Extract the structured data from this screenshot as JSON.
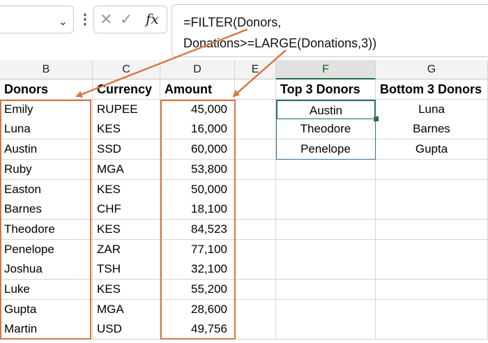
{
  "formula_bar": {
    "formula_line1": "=FILTER(Donors,",
    "formula_line2": "Donations>=LARGE(Donations,3))",
    "fx_label": "fx"
  },
  "columns": [
    "B",
    "C",
    "D",
    "E",
    "F",
    "G"
  ],
  "headers": {
    "donors": "Donors",
    "currency": "Currency",
    "amount": "Amount",
    "top3": "Top 3 Donors",
    "bottom3": "Bottom 3 Donors"
  },
  "rows": [
    {
      "donor": "Emily",
      "currency": "RUPEE",
      "amount": "45,000"
    },
    {
      "donor": "Luna",
      "currency": "KES",
      "amount": "16,000"
    },
    {
      "donor": "Austin",
      "currency": "SSD",
      "amount": "60,000"
    },
    {
      "donor": "Ruby",
      "currency": "MGA",
      "amount": "53,800"
    },
    {
      "donor": "Easton",
      "currency": "KES",
      "amount": "50,000"
    },
    {
      "donor": "Barnes",
      "currency": "CHF",
      "amount": "18,100"
    },
    {
      "donor": "Theodore",
      "currency": "KES",
      "amount": "84,523"
    },
    {
      "donor": "Penelope",
      "currency": "ZAR",
      "amount": "77,100"
    },
    {
      "donor": "Joshua",
      "currency": "TSH",
      "amount": "32,100"
    },
    {
      "donor": "Luke",
      "currency": "KES",
      "amount": "55,200"
    },
    {
      "donor": "Gupta",
      "currency": "MGA",
      "amount": "28,600"
    },
    {
      "donor": "Martin",
      "currency": "USD",
      "amount": "49,756"
    }
  ],
  "top3": [
    "Austin",
    "Theodore",
    "Penelope"
  ],
  "bottom3": [
    "Luna",
    "Barnes",
    "Gupta"
  ],
  "colors": {
    "highlight_orange": "#d77840",
    "active_cell_green": "#1f6e43",
    "result_border_blue": "#2f6fa6"
  }
}
